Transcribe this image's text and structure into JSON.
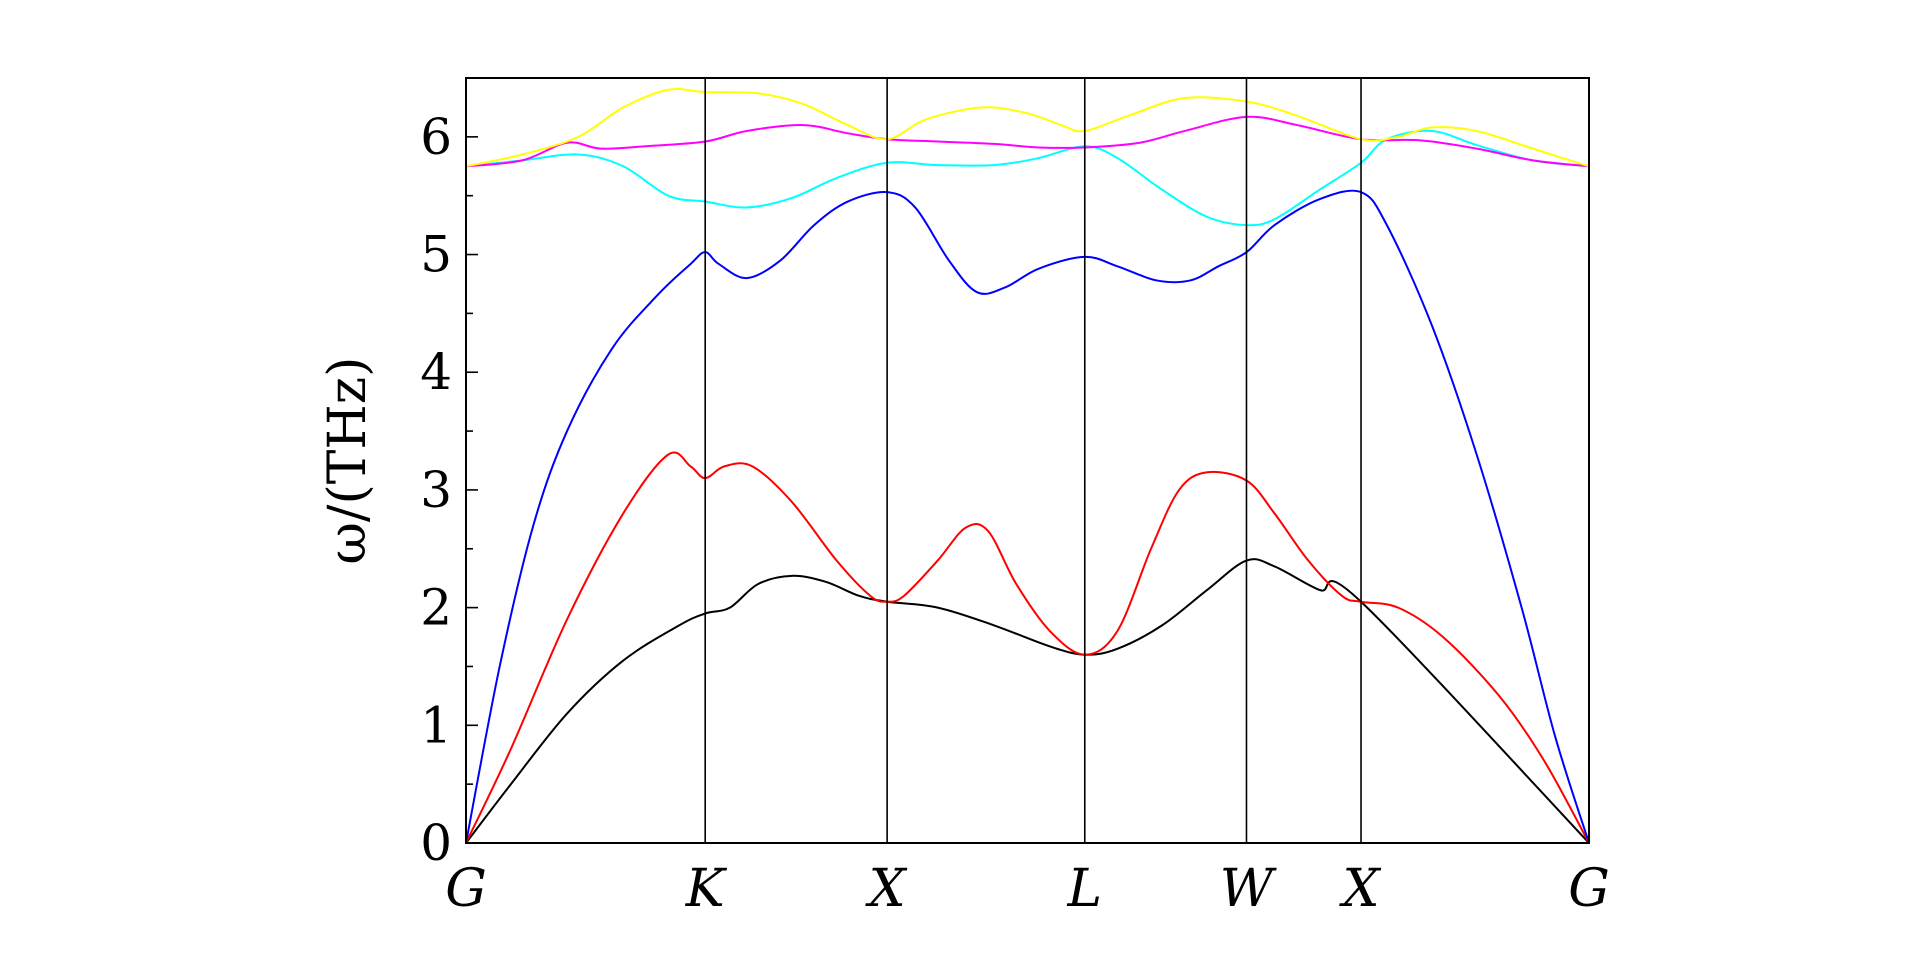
{
  "chart_data": {
    "type": "line",
    "title": "",
    "xlabel": "",
    "ylabel": "ω/(THz)",
    "ylim": [
      0,
      6.5
    ],
    "x_range": [
      0,
      1
    ],
    "grid": false,
    "y_ticks": [
      0,
      1,
      2,
      3,
      4,
      5,
      6
    ],
    "y_tick_labels": [
      "0",
      "1",
      "2",
      "3",
      "4",
      "5",
      "6"
    ],
    "high_symmetry_points": [
      {
        "label": "G",
        "x": 0.0
      },
      {
        "label": "K",
        "x": 0.213
      },
      {
        "label": "X",
        "x": 0.375
      },
      {
        "label": "L",
        "x": 0.551
      },
      {
        "label": "W",
        "x": 0.695
      },
      {
        "label": "X",
        "x": 0.797
      },
      {
        "label": "G",
        "x": 1.0
      }
    ],
    "series": [
      {
        "color": "#000000",
        "points": [
          [
            0,
            0
          ],
          [
            0.04,
            0.5
          ],
          [
            0.09,
            1.1
          ],
          [
            0.14,
            1.55
          ],
          [
            0.19,
            1.85
          ],
          [
            0.213,
            1.95
          ],
          [
            0.235,
            2.0
          ],
          [
            0.26,
            2.2
          ],
          [
            0.29,
            2.27
          ],
          [
            0.32,
            2.22
          ],
          [
            0.35,
            2.1
          ],
          [
            0.375,
            2.05
          ],
          [
            0.42,
            2.0
          ],
          [
            0.47,
            1.85
          ],
          [
            0.52,
            1.67
          ],
          [
            0.551,
            1.6
          ],
          [
            0.58,
            1.65
          ],
          [
            0.62,
            1.85
          ],
          [
            0.66,
            2.15
          ],
          [
            0.695,
            2.4
          ],
          [
            0.72,
            2.35
          ],
          [
            0.76,
            2.15
          ],
          [
            0.797,
            2.05
          ],
          [
            1.0,
            0
          ]
        ]
      },
      {
        "color": "#ff0000",
        "points": [
          [
            0,
            0
          ],
          [
            0.04,
            0.8
          ],
          [
            0.09,
            1.9
          ],
          [
            0.14,
            2.8
          ],
          [
            0.18,
            3.3
          ],
          [
            0.2,
            3.2
          ],
          [
            0.213,
            3.1
          ],
          [
            0.23,
            3.2
          ],
          [
            0.255,
            3.2
          ],
          [
            0.29,
            2.9
          ],
          [
            0.33,
            2.4
          ],
          [
            0.36,
            2.1
          ],
          [
            0.375,
            2.05
          ],
          [
            0.39,
            2.1
          ],
          [
            0.42,
            2.4
          ],
          [
            0.445,
            2.68
          ],
          [
            0.465,
            2.65
          ],
          [
            0.49,
            2.2
          ],
          [
            0.52,
            1.8
          ],
          [
            0.551,
            1.6
          ],
          [
            0.58,
            1.8
          ],
          [
            0.61,
            2.5
          ],
          [
            0.635,
            3.0
          ],
          [
            0.66,
            3.15
          ],
          [
            0.695,
            3.08
          ],
          [
            0.72,
            2.8
          ],
          [
            0.75,
            2.4
          ],
          [
            0.78,
            2.1
          ],
          [
            0.797,
            2.05
          ],
          [
            0.83,
            2.0
          ],
          [
            0.87,
            1.75
          ],
          [
            0.92,
            1.25
          ],
          [
            0.96,
            0.7
          ],
          [
            1.0,
            0
          ]
        ]
      },
      {
        "color": "#0000ff",
        "points": [
          [
            0,
            0
          ],
          [
            0.03,
            1.5
          ],
          [
            0.06,
            2.7
          ],
          [
            0.09,
            3.5
          ],
          [
            0.13,
            4.2
          ],
          [
            0.17,
            4.65
          ],
          [
            0.2,
            4.92
          ],
          [
            0.213,
            5.02
          ],
          [
            0.225,
            4.92
          ],
          [
            0.25,
            4.8
          ],
          [
            0.28,
            4.95
          ],
          [
            0.31,
            5.25
          ],
          [
            0.34,
            5.45
          ],
          [
            0.375,
            5.53
          ],
          [
            0.4,
            5.4
          ],
          [
            0.43,
            4.95
          ],
          [
            0.455,
            4.68
          ],
          [
            0.48,
            4.72
          ],
          [
            0.51,
            4.88
          ],
          [
            0.551,
            4.98
          ],
          [
            0.58,
            4.9
          ],
          [
            0.615,
            4.78
          ],
          [
            0.645,
            4.78
          ],
          [
            0.67,
            4.9
          ],
          [
            0.695,
            5.02
          ],
          [
            0.72,
            5.25
          ],
          [
            0.76,
            5.47
          ],
          [
            0.797,
            5.53
          ],
          [
            0.82,
            5.25
          ],
          [
            0.86,
            4.4
          ],
          [
            0.9,
            3.3
          ],
          [
            0.94,
            2.0
          ],
          [
            0.97,
            0.9
          ],
          [
            1.0,
            0
          ]
        ]
      },
      {
        "color": "#00ffff",
        "points": [
          [
            0,
            5.75
          ],
          [
            0.05,
            5.8
          ],
          [
            0.1,
            5.85
          ],
          [
            0.14,
            5.75
          ],
          [
            0.18,
            5.5
          ],
          [
            0.213,
            5.45
          ],
          [
            0.25,
            5.4
          ],
          [
            0.29,
            5.48
          ],
          [
            0.33,
            5.65
          ],
          [
            0.375,
            5.78
          ],
          [
            0.42,
            5.76
          ],
          [
            0.47,
            5.76
          ],
          [
            0.51,
            5.82
          ],
          [
            0.551,
            5.92
          ],
          [
            0.58,
            5.82
          ],
          [
            0.62,
            5.55
          ],
          [
            0.66,
            5.32
          ],
          [
            0.695,
            5.25
          ],
          [
            0.72,
            5.3
          ],
          [
            0.76,
            5.55
          ],
          [
            0.797,
            5.78
          ],
          [
            0.82,
            5.98
          ],
          [
            0.86,
            6.05
          ],
          [
            0.9,
            5.93
          ],
          [
            0.95,
            5.8
          ],
          [
            1.0,
            5.75
          ]
        ]
      },
      {
        "color": "#ff00ff",
        "points": [
          [
            0,
            5.75
          ],
          [
            0.05,
            5.8
          ],
          [
            0.09,
            5.95
          ],
          [
            0.12,
            5.9
          ],
          [
            0.16,
            5.92
          ],
          [
            0.213,
            5.96
          ],
          [
            0.25,
            6.05
          ],
          [
            0.3,
            6.1
          ],
          [
            0.34,
            6.03
          ],
          [
            0.375,
            5.98
          ],
          [
            0.42,
            5.96
          ],
          [
            0.47,
            5.94
          ],
          [
            0.51,
            5.91
          ],
          [
            0.551,
            5.91
          ],
          [
            0.6,
            5.95
          ],
          [
            0.64,
            6.05
          ],
          [
            0.695,
            6.17
          ],
          [
            0.74,
            6.1
          ],
          [
            0.797,
            5.98
          ],
          [
            0.85,
            5.97
          ],
          [
            0.9,
            5.9
          ],
          [
            0.95,
            5.8
          ],
          [
            1.0,
            5.75
          ]
        ]
      },
      {
        "color": "#ffff00",
        "points": [
          [
            0,
            5.75
          ],
          [
            0.05,
            5.85
          ],
          [
            0.1,
            6.0
          ],
          [
            0.14,
            6.25
          ],
          [
            0.18,
            6.4
          ],
          [
            0.213,
            6.38
          ],
          [
            0.26,
            6.37
          ],
          [
            0.3,
            6.28
          ],
          [
            0.34,
            6.1
          ],
          [
            0.375,
            5.98
          ],
          [
            0.41,
            6.15
          ],
          [
            0.46,
            6.25
          ],
          [
            0.5,
            6.2
          ],
          [
            0.53,
            6.1
          ],
          [
            0.551,
            6.05
          ],
          [
            0.59,
            6.18
          ],
          [
            0.64,
            6.33
          ],
          [
            0.695,
            6.3
          ],
          [
            0.74,
            6.18
          ],
          [
            0.797,
            5.98
          ],
          [
            0.83,
            6.0
          ],
          [
            0.86,
            6.08
          ],
          [
            0.9,
            6.05
          ],
          [
            0.95,
            5.9
          ],
          [
            1.0,
            5.75
          ]
        ]
      }
    ]
  }
}
